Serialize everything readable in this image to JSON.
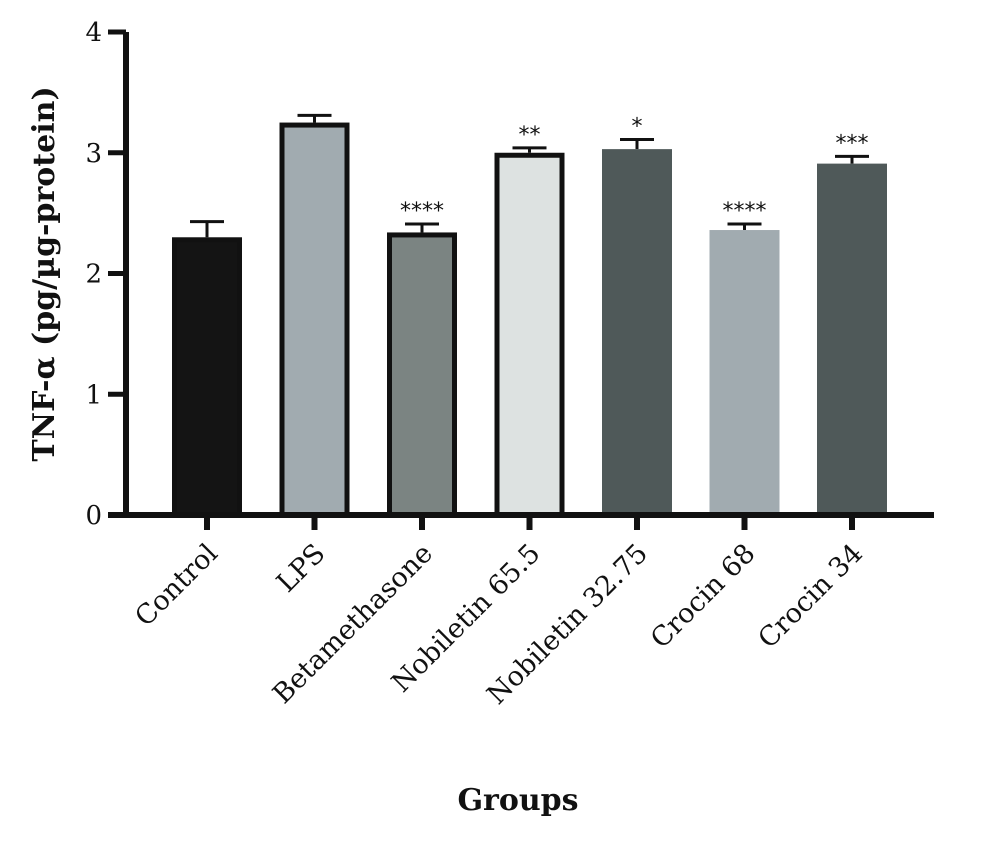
{
  "chart_data": {
    "type": "bar",
    "title": "",
    "xlabel": "Groups",
    "ylabel": "TNF-α (pg/µg-protein)",
    "ylim": [
      0,
      4
    ],
    "yticks": [
      "0",
      "1",
      "2",
      "3",
      "4"
    ],
    "grid": false,
    "categories": [
      "Control",
      "LPS",
      "Betamethasone",
      "Nobiletin 65.5",
      "Nobiletin 32.75",
      "Crocin 68",
      "Crocin 34"
    ],
    "values": [
      2.3,
      3.25,
      2.34,
      3.0,
      3.03,
      2.36,
      2.91
    ],
    "errors": [
      0.13,
      0.06,
      0.07,
      0.04,
      0.08,
      0.05,
      0.06
    ],
    "significance": [
      "",
      "",
      "****",
      "**",
      "*",
      "****",
      "***"
    ],
    "bar_fill": [
      "#141414",
      "#a1abb0",
      "#7b8482",
      "#dde2e1",
      "#4f5959",
      "#a1abb0",
      "#4f5959"
    ],
    "bar_outlined": [
      true,
      true,
      true,
      true,
      false,
      false,
      false
    ]
  }
}
